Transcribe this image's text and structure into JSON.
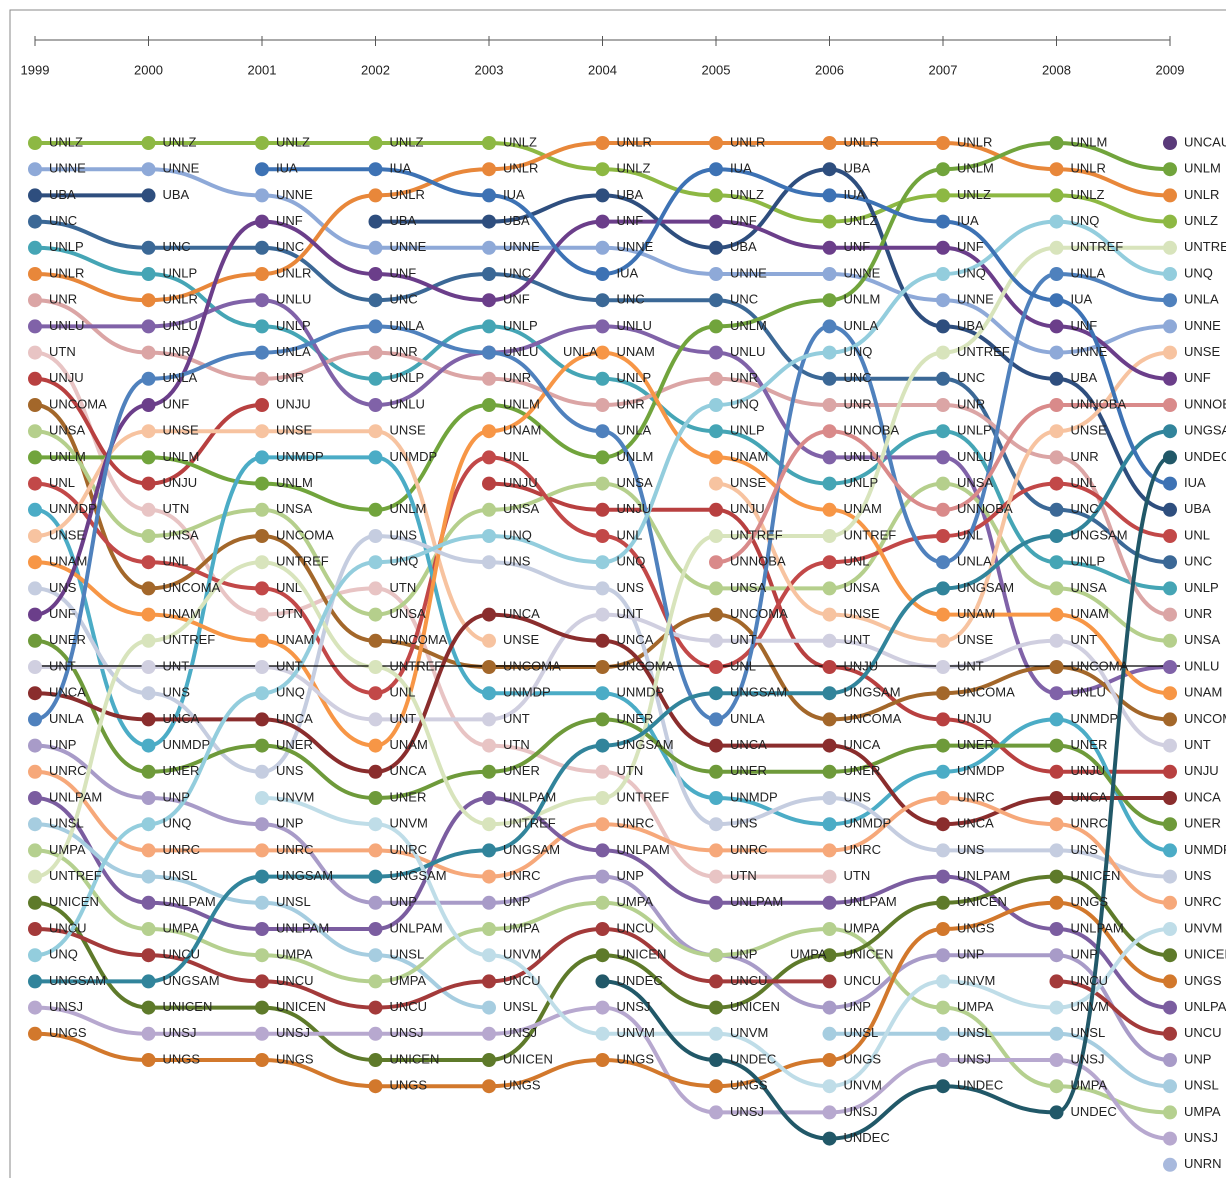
{
  "chart_data": {
    "type": "bump",
    "x": [
      1999,
      2000,
      2001,
      2002,
      2003,
      2004,
      2005,
      2006,
      2007,
      2008,
      2009
    ],
    "xlim": [
      1999,
      2009
    ],
    "xticks": [
      1999,
      2000,
      2001,
      2002,
      2003,
      2004,
      2005,
      2006,
      2007,
      2008,
      2009
    ],
    "ylim": [
      40,
      1
    ],
    "series": [
      {
        "name": "UNLZ",
        "color": "#8db843",
        "values": [
          1,
          1,
          1,
          1,
          1,
          2,
          3,
          4,
          3,
          3,
          4
        ]
      },
      {
        "name": "UNNE",
        "color": "#8ea9d8",
        "values": [
          2,
          2,
          3,
          5,
          5,
          5,
          6,
          6,
          7,
          9,
          8
        ]
      },
      {
        "name": "UBA",
        "color": "#2e4e7e",
        "values": [
          3,
          3,
          null,
          4,
          4,
          3,
          5,
          2,
          8,
          10,
          15
        ]
      },
      {
        "name": "UNC",
        "color": "#3b6896",
        "values": [
          4,
          5,
          5,
          7,
          6,
          7,
          7,
          10,
          10,
          15,
          17
        ]
      },
      {
        "name": "UNLP",
        "color": "#45a5b5",
        "values": [
          5,
          6,
          8,
          10,
          8,
          10,
          12,
          14,
          12,
          17,
          18
        ]
      },
      {
        "name": "UNLR",
        "color": "#e8873a",
        "values": [
          6,
          7,
          6,
          3,
          2,
          1,
          1,
          1,
          1,
          2,
          3
        ]
      },
      {
        "name": "UNR",
        "color": "#dba5a5",
        "values": [
          7,
          9,
          10,
          9,
          10,
          11,
          10,
          11,
          11,
          13,
          19
        ]
      },
      {
        "name": "UNLU",
        "color": "#8062a8",
        "values": [
          8,
          8,
          7,
          11,
          9,
          8,
          9,
          13,
          13,
          22,
          21
        ]
      },
      {
        "name": "UTN",
        "color": "#e8c4c4",
        "values": [
          9,
          15,
          19,
          18,
          24,
          25,
          29,
          29,
          null,
          null,
          null
        ]
      },
      {
        "name": "UNJU",
        "color": "#b84040",
        "values": [
          10,
          14,
          11,
          null,
          14,
          15,
          15,
          21,
          23,
          25,
          25
        ]
      },
      {
        "name": "UNCOMA",
        "color": "#a3672a",
        "values": [
          11,
          18,
          16,
          20,
          21,
          21,
          19,
          23,
          22,
          21,
          23
        ]
      },
      {
        "name": "UNSA",
        "color": "#b5cf8c",
        "values": [
          12,
          16,
          15,
          19,
          15,
          14,
          18,
          18,
          14,
          18,
          20
        ]
      },
      {
        "name": "UNLM",
        "color": "#71a43c",
        "values": [
          13,
          13,
          14,
          15,
          11,
          13,
          8,
          7,
          2,
          1,
          2
        ]
      },
      {
        "name": "UNL",
        "color": "#c24848",
        "values": [
          14,
          17,
          18,
          22,
          13,
          16,
          21,
          17,
          16,
          14,
          16
        ]
      },
      {
        "name": "UNMDP",
        "color": "#4bacc6",
        "values": [
          15,
          24,
          13,
          13,
          22,
          22,
          26,
          27,
          25,
          23,
          28
        ]
      },
      {
        "name": "UNSE",
        "color": "#f7c3a0",
        "values": [
          16,
          12,
          12,
          12,
          20,
          null,
          14,
          19,
          20,
          12,
          9
        ]
      },
      {
        "name": "UNAM",
        "color": "#f79646",
        "values": [
          17,
          19,
          20,
          24,
          12,
          9,
          13,
          15,
          19,
          19,
          22
        ]
      },
      {
        "name": "UNS",
        "color": "#c5cde0",
        "values": [
          18,
          22,
          25,
          16,
          17,
          18,
          27,
          26,
          28,
          28,
          29
        ]
      },
      {
        "name": "UNF",
        "color": "#6b3e8a",
        "values": [
          19,
          11,
          4,
          6,
          7,
          4,
          4,
          5,
          5,
          8,
          10
        ]
      },
      {
        "name": "UNER",
        "color": "#6e9a3a",
        "values": [
          20,
          25,
          24,
          26,
          25,
          23,
          25,
          25,
          24,
          24,
          27
        ]
      },
      {
        "name": "UNT",
        "color": "#d0cfe0",
        "values": [
          21,
          21,
          21,
          23,
          23,
          19,
          20,
          20,
          21,
          20,
          24
        ]
      },
      {
        "name": "UNCA",
        "color": "#8a2d2d",
        "values": [
          22,
          23,
          23,
          25,
          19,
          20,
          24,
          24,
          27,
          26,
          26
        ]
      },
      {
        "name": "UNLA",
        "color": "#4f81bd",
        "values": [
          23,
          10,
          9,
          8,
          9,
          12,
          23,
          8,
          17,
          6,
          7
        ]
      },
      {
        "name": "UNP",
        "color": "#a89bc8",
        "values": [
          24,
          26,
          27,
          30,
          30,
          29,
          32,
          34,
          32,
          32,
          36
        ]
      },
      {
        "name": "UNRC",
        "color": "#f6a87a",
        "values": [
          25,
          28,
          28,
          28,
          29,
          27,
          28,
          28,
          26,
          27,
          30
        ]
      },
      {
        "name": "UNLPAM",
        "color": "#7b5da0",
        "values": [
          26,
          30,
          31,
          31,
          26,
          28,
          30,
          30,
          29,
          31,
          34
        ]
      },
      {
        "name": "UNSL",
        "color": "#a6cde0",
        "values": [
          27,
          29,
          30,
          32,
          34,
          null,
          null,
          35,
          35,
          35,
          37
        ]
      },
      {
        "name": "UMPA",
        "color": "#b5d08f",
        "values": [
          28,
          31,
          32,
          33,
          31,
          30,
          32,
          31,
          34,
          37,
          38
        ]
      },
      {
        "name": "UNTREF",
        "color": "#d8e4bc",
        "values": [
          29,
          20,
          17,
          21,
          27,
          26,
          16,
          16,
          9,
          5,
          5
        ]
      },
      {
        "name": "UNICEN",
        "color": "#5e7a2a",
        "values": [
          30,
          34,
          34,
          36,
          36,
          32,
          34,
          32,
          30,
          29,
          32
        ]
      },
      {
        "name": "UNCU",
        "color": "#a33a3a",
        "values": [
          31,
          32,
          33,
          34,
          33,
          31,
          33,
          33,
          null,
          33,
          35
        ]
      },
      {
        "name": "UNQ",
        "color": "#93cddd",
        "values": [
          32,
          27,
          22,
          17,
          16,
          17,
          11,
          9,
          6,
          4,
          6
        ]
      },
      {
        "name": "UNGSAM",
        "color": "#31849b",
        "values": [
          33,
          33,
          29,
          29,
          28,
          24,
          22,
          22,
          18,
          16,
          12
        ]
      },
      {
        "name": "UNSJ",
        "color": "#b7a8cf",
        "values": [
          34,
          35,
          35,
          35,
          35,
          34,
          38,
          38,
          36,
          36,
          39
        ]
      },
      {
        "name": "UNGS",
        "color": "#d2782c",
        "values": [
          35,
          36,
          36,
          37,
          37,
          36,
          37,
          36,
          31,
          30,
          33
        ]
      },
      {
        "name": "IUA",
        "color": "#3d72b4",
        "values": [
          null,
          null,
          2,
          2,
          3,
          6,
          2,
          3,
          4,
          7,
          14
        ]
      },
      {
        "name": "UNVM",
        "color": "#bfdde8",
        "values": [
          null,
          null,
          26,
          27,
          32,
          35,
          35,
          37,
          33,
          34,
          31
        ]
      },
      {
        "name": "UNDEC",
        "color": "#215868",
        "values": [
          null,
          null,
          null,
          null,
          null,
          33,
          36,
          39,
          37,
          38,
          13
        ]
      },
      {
        "name": "UNNOBA",
        "color": "#d98a8a",
        "values": [
          null,
          null,
          null,
          null,
          null,
          null,
          17,
          12,
          15,
          11,
          11
        ]
      },
      {
        "name": "UNCAUS",
        "color": "#5a3a7a",
        "values": [
          null,
          null,
          null,
          null,
          null,
          null,
          null,
          null,
          null,
          null,
          1
        ]
      },
      {
        "name": "UNRN",
        "color": "#a8b9dd",
        "values": [
          null,
          null,
          null,
          null,
          null,
          null,
          null,
          null,
          null,
          null,
          40
        ]
      }
    ]
  }
}
